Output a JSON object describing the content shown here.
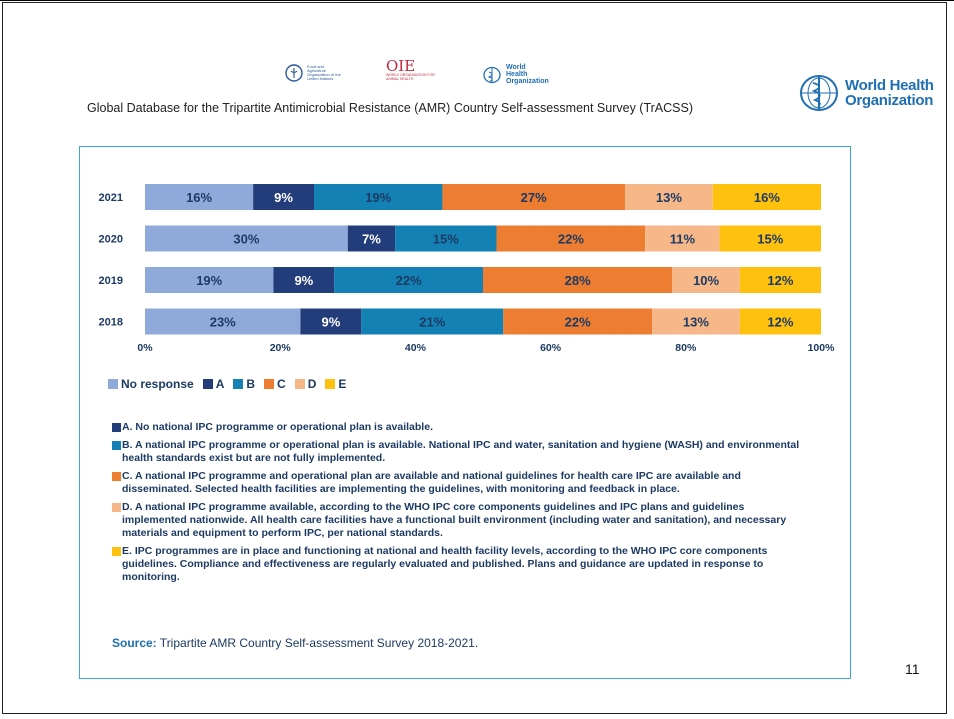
{
  "header": {
    "title": "Global Database for the Tripartite Antimicrobial Resistance (AMR) Country Self-assessment Survey (TrACSS)",
    "logo_fao_text": "Food and Agriculture Organization of the United Nations",
    "logo_oie_mark": "OIE",
    "logo_oie_text": "WORLD ORGANISATION FOR ANIMAL HEALTH",
    "logo_who_small": "World Health Organization",
    "logo_who_big_line1": "World Health",
    "logo_who_big_line2": "Organization"
  },
  "chart_data": {
    "type": "bar",
    "orientation": "horizontal-stacked-100",
    "categories": [
      "2021",
      "2020",
      "2019",
      "2018"
    ],
    "series": [
      {
        "name": "No response",
        "values": [
          16,
          30,
          19,
          23
        ],
        "color": "#8fa9db",
        "label_color": "#1d3a63"
      },
      {
        "name": "A",
        "values": [
          9,
          7,
          9,
          9
        ],
        "color": "#233d7b",
        "label_color": "#ffffff"
      },
      {
        "name": "B",
        "values": [
          19,
          15,
          22,
          21
        ],
        "color": "#1481b5",
        "label_color": "#1d3a63"
      },
      {
        "name": "C",
        "values": [
          27,
          22,
          28,
          22
        ],
        "color": "#ed7d31",
        "label_color": "#1d3a63"
      },
      {
        "name": "D",
        "values": [
          13,
          11,
          10,
          13
        ],
        "color": "#f6b889",
        "label_color": "#1d3a63"
      },
      {
        "name": "E",
        "values": [
          16,
          15,
          12,
          12
        ],
        "color": "#fec20e",
        "label_color": "#1d3a63"
      }
    ],
    "x_ticks": [
      "0%",
      "20%",
      "40%",
      "60%",
      "80%",
      "100%"
    ],
    "xlim": [
      0,
      100
    ],
    "grid": false,
    "legend_position": "bottom"
  },
  "definitions": [
    {
      "key": "A",
      "color": "#233d7b",
      "text": "A. No national IPC programme or operational plan is available."
    },
    {
      "key": "B",
      "color": "#1481b5",
      "text": "B. A national IPC programme or operational plan is available. National IPC and water, sanitation and hygiene (WASH) and environmental health standards exist but are not fully implemented."
    },
    {
      "key": "C",
      "color": "#ed7d31",
      "text": "C. A national IPC programme and operational plan are available and national guidelines for health care IPC are available and disseminated. Selected health facilities are implementing the guidelines, with monitoring and feedback in place."
    },
    {
      "key": "D",
      "color": "#f6b889",
      "text": "D. A national IPC programme available, according to the WHO IPC core components guidelines and IPC plans and guidelines implemented nationwide. All health care facilities have a functional built environment (including water and sanitation), and necessary materials and equipment to perform IPC, per national standards."
    },
    {
      "key": "E",
      "color": "#fec20e",
      "text": "E. IPC programmes are in place and functioning at national and health facility levels, according to the WHO IPC core components guidelines. Compliance and effectiveness are regularly evaluated and published. Plans and guidance are updated in response to monitoring."
    }
  ],
  "source": {
    "label": "Source:",
    "text": " Tripartite AMR Country Self-assessment Survey 2018-2021."
  },
  "page_number": "11"
}
